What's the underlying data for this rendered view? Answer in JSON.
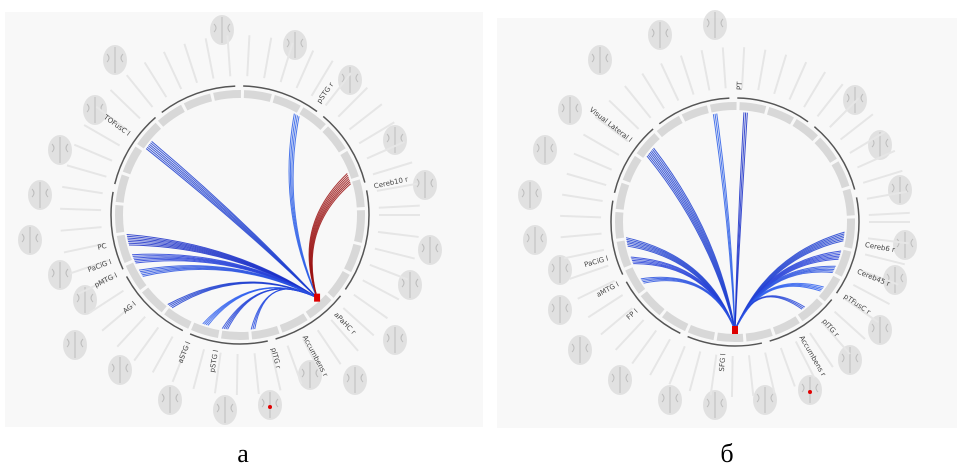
{
  "panels": [
    {
      "caption": "а",
      "labels": [
        "TOFusC l",
        "PC",
        "PaCiG l",
        "pMTG l",
        "AG l",
        "pSTG r",
        "Cereb10 r",
        "aPaHC r",
        "Accumbens r",
        "pITG r",
        "pSTG l",
        "aSTG l"
      ]
    },
    {
      "caption": "б",
      "labels": [
        "Visual Lateral l",
        "PaCiG l",
        "aMTG l",
        "FP l",
        "SFG l",
        "PT",
        "Cereb6 r",
        "Cereb45 r",
        "pTFusC r",
        "pITG r",
        "Accumbens r"
      ]
    }
  ]
}
